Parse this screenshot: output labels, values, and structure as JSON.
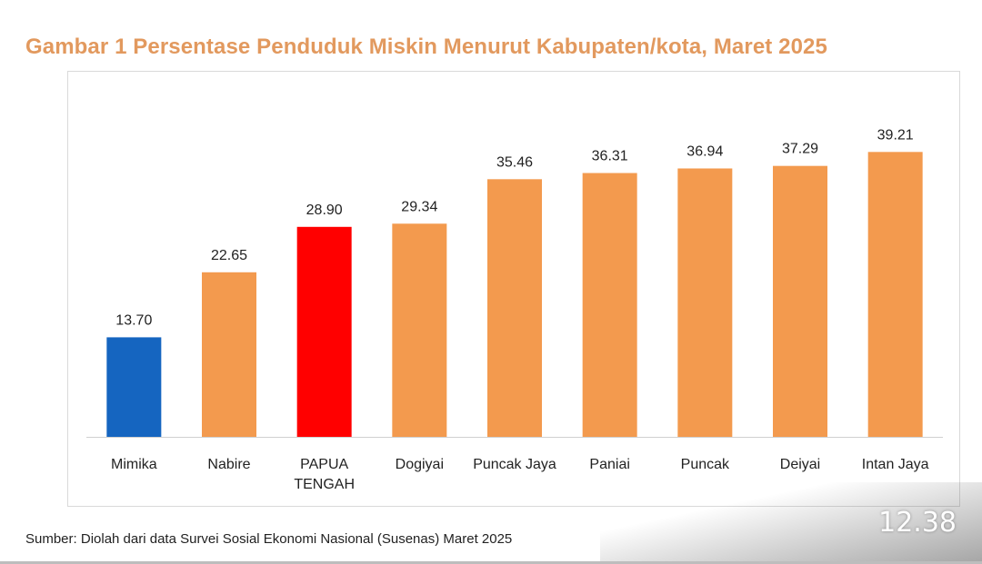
{
  "title": "Gambar 1 Persentase Penduduk Miskin Menurut Kabupaten/kota, Maret  2025",
  "source": "Sumber: Diolah dari data Survei Sosial Ekonomi Nasional (Susenas) Maret  2025",
  "timestamp": "12.38",
  "colors": {
    "title": "#e2995e",
    "default_bar": "#f39a4e",
    "highlight_blue": "#1565c0",
    "highlight_red": "#ff0000"
  },
  "chart_data": {
    "type": "bar",
    "title": "Gambar 1 Persentase Penduduk Miskin Menurut Kabupaten/kota, Maret  2025",
    "xlabel": "",
    "ylabel": "",
    "ylim": [
      0,
      42
    ],
    "grid": false,
    "categories": [
      [
        "Mimika"
      ],
      [
        "Nabire"
      ],
      [
        "PAPUA",
        "TENGAH"
      ],
      [
        "Dogiyai"
      ],
      [
        "Puncak Jaya"
      ],
      [
        "Paniai"
      ],
      [
        "Puncak"
      ],
      [
        "Deiyai"
      ],
      [
        "Intan Jaya"
      ]
    ],
    "values": [
      13.7,
      22.65,
      28.9,
      29.34,
      35.46,
      36.31,
      36.94,
      37.29,
      39.21
    ],
    "value_labels": [
      "13.70",
      "22.65",
      "28.90",
      "29.34",
      "35.46",
      "36.31",
      "36.94",
      "37.29",
      "39.21"
    ],
    "bar_colors": [
      "#1565c0",
      "#f39a4e",
      "#ff0000",
      "#f39a4e",
      "#f39a4e",
      "#f39a4e",
      "#f39a4e",
      "#f39a4e",
      "#f39a4e"
    ]
  }
}
